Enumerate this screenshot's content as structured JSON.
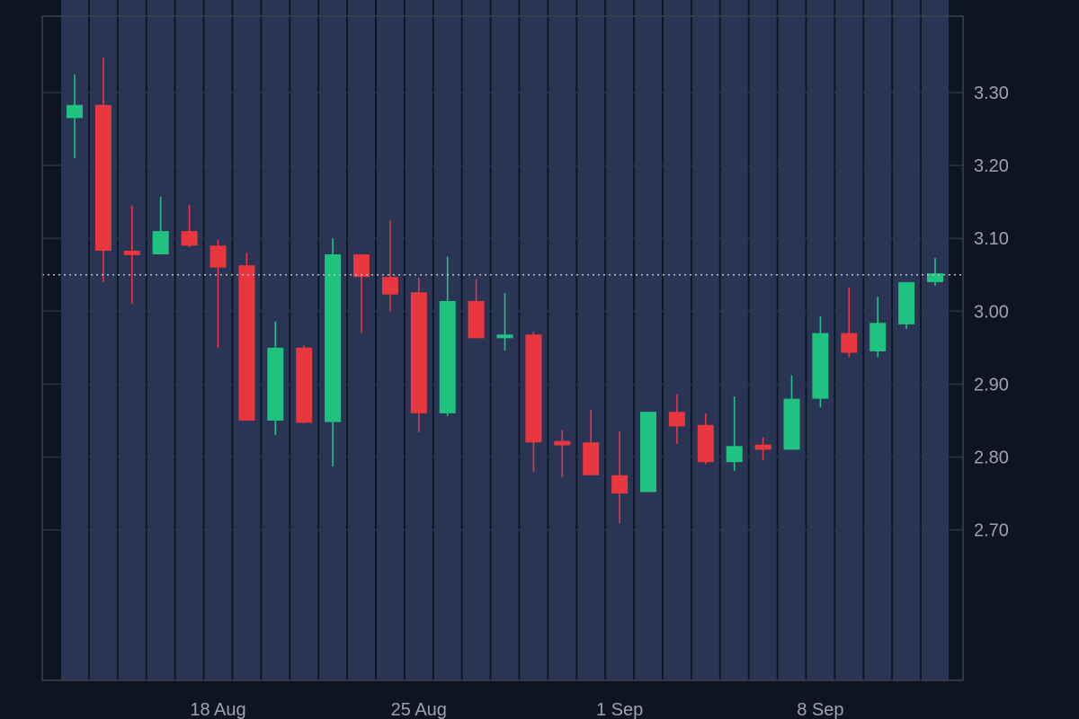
{
  "theme": {
    "background": "#0f1421",
    "grid": "#2a3140",
    "frame": "#3a4150",
    "up": "#1fc37f",
    "down": "#e8373f",
    "volume": "#2a3556",
    "dotted_line": "#b8c0cc",
    "text": "#9aa3b2"
  },
  "chart_data": {
    "type": "candlestick",
    "price_axis": {
      "side": "right",
      "min": 2.6,
      "max": 3.4,
      "ticks": [
        2.7,
        2.8,
        2.9,
        3.0,
        3.1,
        3.2,
        3.3
      ],
      "tick_labels": [
        "2.70",
        "2.80",
        "2.90",
        "3.00",
        "3.10",
        "3.20",
        "3.30"
      ]
    },
    "x_axis": {
      "tick_labels": [
        {
          "label": "18 Aug",
          "index": 5
        },
        {
          "label": "25 Aug",
          "index": 12
        },
        {
          "label": "1 Sep",
          "index": 19
        },
        {
          "label": "8 Sep",
          "index": 26
        }
      ]
    },
    "current_price_line": 3.05,
    "candles": [
      {
        "o": 3.265,
        "h": 3.325,
        "l": 3.21,
        "c": 3.283
      },
      {
        "o": 3.283,
        "h": 3.348,
        "l": 3.04,
        "c": 3.083
      },
      {
        "o": 3.083,
        "h": 3.145,
        "l": 3.01,
        "c": 3.077
      },
      {
        "o": 3.078,
        "h": 3.157,
        "l": 3.078,
        "c": 3.11
      },
      {
        "o": 3.11,
        "h": 3.146,
        "l": 3.088,
        "c": 3.09
      },
      {
        "o": 3.09,
        "h": 3.098,
        "l": 2.95,
        "c": 3.06
      },
      {
        "o": 3.063,
        "h": 3.08,
        "l": 2.85,
        "c": 2.85
      },
      {
        "o": 2.85,
        "h": 2.986,
        "l": 2.83,
        "c": 2.95
      },
      {
        "o": 2.95,
        "h": 2.953,
        "l": 2.846,
        "c": 2.847
      },
      {
        "o": 2.848,
        "h": 3.1,
        "l": 2.787,
        "c": 3.078
      },
      {
        "o": 3.078,
        "h": 3.078,
        "l": 2.97,
        "c": 3.047
      },
      {
        "o": 3.047,
        "h": 3.125,
        "l": 3.0,
        "c": 3.023
      },
      {
        "o": 3.026,
        "h": 3.046,
        "l": 2.834,
        "c": 2.86
      },
      {
        "o": 2.86,
        "h": 3.075,
        "l": 2.856,
        "c": 3.014
      },
      {
        "o": 3.014,
        "h": 3.044,
        "l": 2.963,
        "c": 2.963
      },
      {
        "o": 2.963,
        "h": 3.025,
        "l": 2.946,
        "c": 2.968
      },
      {
        "o": 2.968,
        "h": 2.972,
        "l": 2.78,
        "c": 2.82
      },
      {
        "o": 2.822,
        "h": 2.837,
        "l": 2.772,
        "c": 2.816
      },
      {
        "o": 2.82,
        "h": 2.865,
        "l": 2.775,
        "c": 2.775
      },
      {
        "o": 2.775,
        "h": 2.835,
        "l": 2.709,
        "c": 2.75
      },
      {
        "o": 2.752,
        "h": 2.862,
        "l": 2.752,
        "c": 2.862
      },
      {
        "o": 2.862,
        "h": 2.886,
        "l": 2.818,
        "c": 2.842
      },
      {
        "o": 2.844,
        "h": 2.86,
        "l": 2.79,
        "c": 2.793
      },
      {
        "o": 2.793,
        "h": 2.883,
        "l": 2.781,
        "c": 2.815
      },
      {
        "o": 2.817,
        "h": 2.827,
        "l": 2.796,
        "c": 2.81
      },
      {
        "o": 2.81,
        "h": 2.912,
        "l": 2.81,
        "c": 2.88
      },
      {
        "o": 2.88,
        "h": 2.993,
        "l": 2.868,
        "c": 2.97
      },
      {
        "o": 2.97,
        "h": 3.033,
        "l": 2.937,
        "c": 2.943
      },
      {
        "o": 2.945,
        "h": 3.02,
        "l": 2.937,
        "c": 2.984
      },
      {
        "o": 2.982,
        "h": 3.04,
        "l": 2.976,
        "c": 3.04
      },
      {
        "o": 3.04,
        "h": 3.073,
        "l": 3.035,
        "c": 3.052
      }
    ],
    "volume": [
      100,
      100,
      100,
      100,
      100,
      100,
      100,
      100,
      100,
      100,
      100,
      100,
      100,
      100,
      100,
      100,
      100,
      100,
      100,
      100,
      100,
      100,
      100,
      100,
      100,
      100,
      100,
      100,
      100,
      100,
      100
    ],
    "volume_axis": {
      "min": 0,
      "max": 1
    }
  }
}
